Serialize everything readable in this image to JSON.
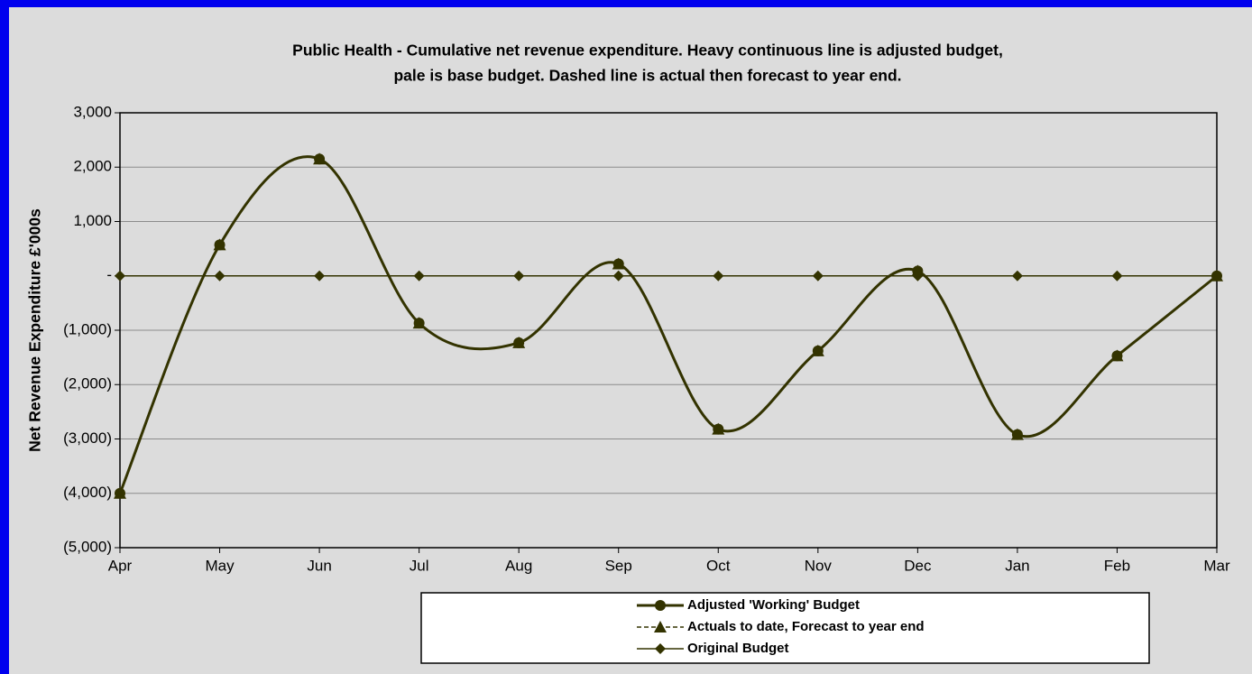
{
  "chart_data": {
    "type": "line",
    "title": [
      "Public Health - Cumulative net revenue expenditure. Heavy continuous line is adjusted budget,",
      "pale is base budget. Dashed line is actual then forecast to year end."
    ],
    "y_label": "Net Revenue Expenditure £'000s",
    "categories": [
      "Apr",
      "May",
      "Jun",
      "Jul",
      "Aug",
      "Sep",
      "Oct",
      "Nov",
      "Dec",
      "Jan",
      "Feb",
      "Mar"
    ],
    "series": [
      {
        "name": "Adjusted 'Working' Budget",
        "color": "#333300",
        "marker": "circle",
        "dash": false,
        "smooth": true,
        "values": [
          -4000,
          570,
          2150,
          -870,
          -1230,
          220,
          -2820,
          -1380,
          90,
          -2920,
          -1470,
          0
        ]
      },
      {
        "name": "Actuals to date, Forecast to year end",
        "color": "#333300",
        "marker": "triangle",
        "dash": true,
        "smooth": true,
        "values": [
          -4000,
          570,
          2150,
          -870,
          -1230,
          220,
          -2820,
          -1380,
          90,
          -2920,
          -1470,
          0
        ]
      },
      {
        "name": "Original Budget",
        "color": "#333300",
        "marker": "diamond",
        "dash": false,
        "smooth": false,
        "values": [
          0,
          0,
          0,
          0,
          0,
          0,
          0,
          0,
          0,
          0,
          0,
          0
        ]
      }
    ],
    "ylim": [
      -5000,
      3000
    ],
    "yticks": [
      {
        "value": -5000,
        "label": "(5,000)"
      },
      {
        "value": -4000,
        "label": "(4,000)"
      },
      {
        "value": -3000,
        "label": "(3,000)"
      },
      {
        "value": -2000,
        "label": "(2,000)"
      },
      {
        "value": -1000,
        "label": "(1,000)"
      },
      {
        "value": 0,
        "label": "-"
      },
      {
        "value": 1000,
        "label": "1,000"
      },
      {
        "value": 2000,
        "label": "2,000"
      },
      {
        "value": 3000,
        "label": "3,000"
      }
    ],
    "grid": true,
    "legend": "bottom"
  }
}
